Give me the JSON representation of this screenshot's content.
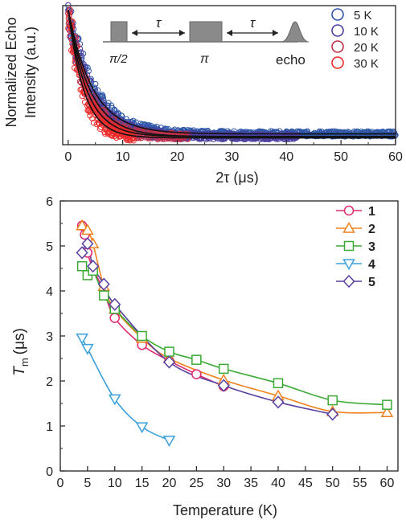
{
  "chart_data": [
    {
      "type": "scatter",
      "title": "",
      "xlabel": "2τ (μs)",
      "ylabel": "Normalized Echo Intensity (a.u.)",
      "xlim": [
        -1,
        60
      ],
      "ylim": [
        0,
        1
      ],
      "grid": false,
      "legend_position": "top-right",
      "xticks": [
        "0",
        "10",
        "20",
        "30",
        "40",
        "50",
        "60"
      ],
      "pulse_labels": {
        "pi_half": "π/2",
        "pi": "π",
        "echo": "echo",
        "tau": "τ"
      },
      "series": [
        {
          "name": "5 K",
          "color": "#2f57a8",
          "xmax": 60,
          "decay_us": 4.5,
          "tail": 0.08
        },
        {
          "name": "10 K",
          "color": "#4a3fa0",
          "xmax": 42,
          "decay_us": 4.0,
          "tail": 0.06
        },
        {
          "name": "20 K",
          "color": "#c0304a",
          "xmax": 22,
          "decay_us": 3.4,
          "tail": 0.06
        },
        {
          "name": "30 K",
          "color": "#ee2a2a",
          "xmax": 12,
          "decay_us": 2.9,
          "tail": 0.05
        }
      ]
    },
    {
      "type": "line",
      "title": "",
      "xlabel": "Temperature (K)",
      "ylabel_main": "T",
      "ylabel_sub": "m",
      "ylabel_unit": "(μs)",
      "xlim": [
        0,
        62
      ],
      "ylim": [
        0,
        6
      ],
      "grid": false,
      "legend_position": "top-right",
      "xticks": [
        "0",
        "5",
        "10",
        "15",
        "20",
        "25",
        "30",
        "35",
        "40",
        "45",
        "50",
        "55",
        "60"
      ],
      "yticks": [
        "0",
        "1",
        "2",
        "3",
        "4",
        "5",
        "6"
      ],
      "series": [
        {
          "name": "1",
          "marker": "circle",
          "color": "#e0286e",
          "x": [
            4,
            4.5,
            5,
            6,
            8,
            10,
            15,
            20,
            25,
            30
          ],
          "y": [
            5.45,
            5.25,
            4.85,
            4.5,
            4.0,
            3.4,
            2.8,
            2.45,
            2.15,
            1.88
          ]
        },
        {
          "name": "2",
          "marker": "triangle-up",
          "color": "#f0821e",
          "x": [
            4,
            5,
            6,
            8,
            10,
            15,
            20,
            30,
            40,
            50,
            60
          ],
          "y": [
            5.45,
            5.35,
            5.05,
            4.1,
            3.6,
            2.95,
            2.5,
            2.02,
            1.67,
            1.32,
            1.3
          ]
        },
        {
          "name": "3",
          "marker": "square",
          "color": "#3aaa35",
          "x": [
            4,
            5,
            6,
            8,
            10,
            15,
            20,
            25,
            30,
            40,
            50,
            60
          ],
          "y": [
            4.55,
            4.35,
            4.45,
            3.9,
            3.6,
            3.0,
            2.65,
            2.47,
            2.27,
            1.95,
            1.57,
            1.47
          ]
        },
        {
          "name": "4",
          "marker": "triangle-down",
          "color": "#3aa0dc",
          "x": [
            4,
            5,
            10,
            15,
            20
          ],
          "y": [
            2.95,
            2.72,
            1.6,
            0.98,
            0.68
          ]
        },
        {
          "name": "5",
          "marker": "diamond",
          "color": "#5a3fa0",
          "x": [
            4,
            5,
            6,
            8,
            10,
            20,
            30,
            40,
            50
          ],
          "y": [
            4.85,
            5.05,
            4.55,
            4.15,
            3.7,
            2.42,
            1.9,
            1.53,
            1.26
          ]
        }
      ]
    }
  ]
}
